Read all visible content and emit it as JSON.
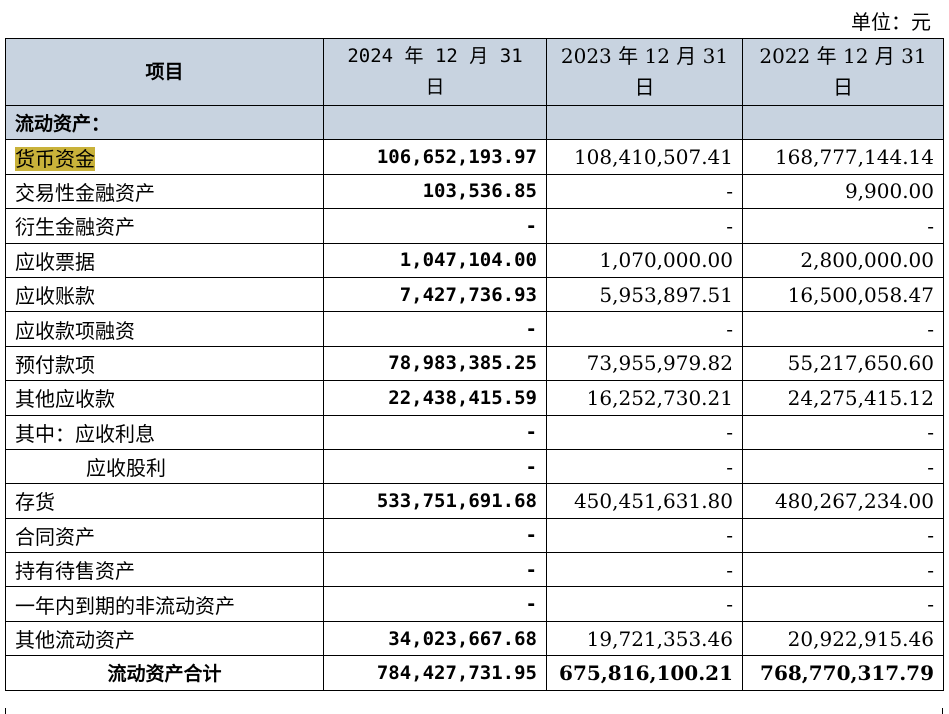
{
  "unit_label": "单位：元",
  "header": {
    "item": "项目",
    "col_2024": "2024 年 12 月 31 日",
    "col_2023": "2023 年 12 月 31 日",
    "col_2022": "2022 年 12 月 31 日"
  },
  "section_title": "流动资产：",
  "rows": [
    {
      "label": "货币资金",
      "v2024": "106,652,193.97",
      "v2023": "108,410,507.41",
      "v2022": "168,777,144.14",
      "highlight": true
    },
    {
      "label": "交易性金融资产",
      "v2024": "103,536.85",
      "v2023": "-",
      "v2022": "9,900.00"
    },
    {
      "label": "衍生金融资产",
      "v2024": "-",
      "v2023": "-",
      "v2022": "-"
    },
    {
      "label": "应收票据",
      "v2024": "1,047,104.00",
      "v2023": "1,070,000.00",
      "v2022": "2,800,000.00"
    },
    {
      "label": "应收账款",
      "v2024": "7,427,736.93",
      "v2023": "5,953,897.51",
      "v2022": "16,500,058.47"
    },
    {
      "label": "应收款项融资",
      "v2024": "-",
      "v2023": "-",
      "v2022": "-"
    },
    {
      "label": "预付款项",
      "v2024": "78,983,385.25",
      "v2023": "73,955,979.82",
      "v2022": "55,217,650.60"
    },
    {
      "label": "其他应收款",
      "v2024": "22,438,415.59",
      "v2023": "16,252,730.21",
      "v2022": "24,275,415.12"
    },
    {
      "label": "其中：应收利息",
      "v2024": "-",
      "v2023": "-",
      "v2022": "-"
    },
    {
      "label": "应收股利",
      "v2024": "-",
      "v2023": "-",
      "v2022": "-",
      "indent": true
    },
    {
      "label": "存货",
      "v2024": "533,751,691.68",
      "v2023": "450,451,631.80",
      "v2022": "480,267,234.00"
    },
    {
      "label": "合同资产",
      "v2024": "-",
      "v2023": "-",
      "v2022": "-"
    },
    {
      "label": "持有待售资产",
      "v2024": "-",
      "v2023": "-",
      "v2022": "-"
    },
    {
      "label": "一年内到期的非流动资产",
      "v2024": "-",
      "v2023": "-",
      "v2022": "-"
    },
    {
      "label": "其他流动资产",
      "v2024": "34,023,667.68",
      "v2023": "19,721,353.46",
      "v2022": "20,922,915.46"
    }
  ],
  "total": {
    "label": "流动资产合计",
    "v2024": "784,427,731.95",
    "v2023": "675,816,100.21",
    "v2022": "768,770,317.79"
  },
  "colors": {
    "header_bg": "#c8d3e0",
    "highlight": "#c9b23a"
  }
}
